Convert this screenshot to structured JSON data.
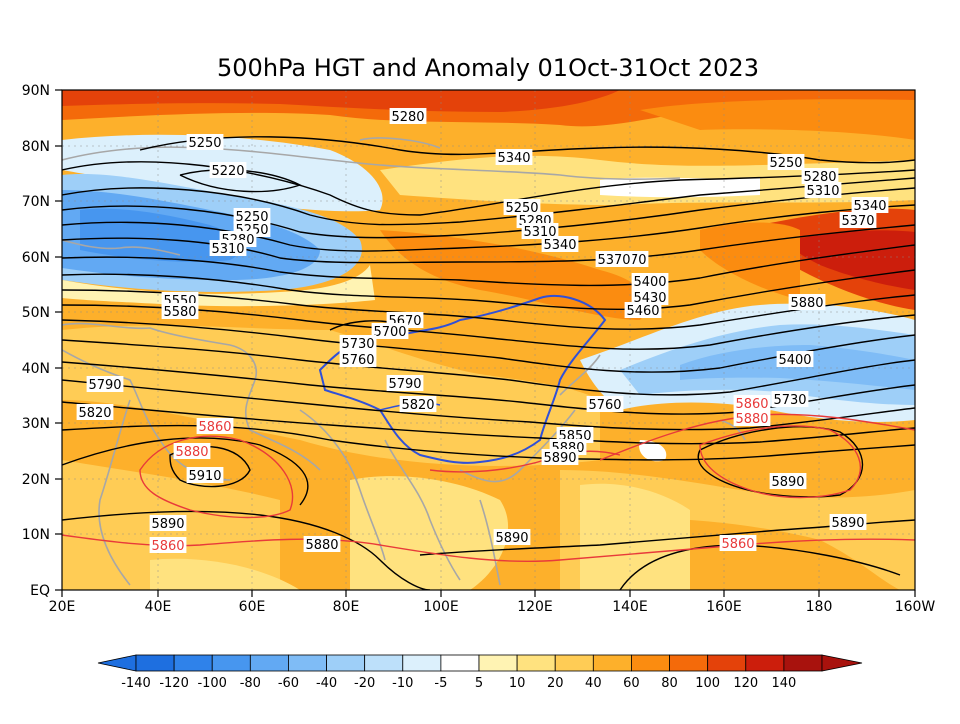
{
  "title": "500hPa HGT and Anomaly 01Oct-31Oct 2023",
  "lat_labels": [
    "90N",
    "80N",
    "70N",
    "60N",
    "50N",
    "40N",
    "30N",
    "20N",
    "10N",
    "EQ"
  ],
  "lon_labels": [
    "20E",
    "40E",
    "60E",
    "80E",
    "100E",
    "120E",
    "140E",
    "160E",
    "180",
    "160W"
  ],
  "colorbar": {
    "labels": [
      "-140",
      "-120",
      "-100",
      "-80",
      "-60",
      "-40",
      "-20",
      "-10",
      "-5",
      "5",
      "10",
      "20",
      "40",
      "60",
      "80",
      "100",
      "120",
      "140"
    ],
    "colors": [
      "#1e6fe0",
      "#2f82ea",
      "#4796ef",
      "#62a9f3",
      "#7fbcf6",
      "#9ecff8",
      "#bde0fa",
      "#dcf0fc",
      "#ffffff",
      "#fff3b3",
      "#ffe27f",
      "#ffcc55",
      "#fdb02b",
      "#fb8c10",
      "#f46a0a",
      "#e4420a",
      "#cc1e0c",
      "#a8120d"
    ]
  },
  "contour_labels_black": [
    "5280",
    "5250",
    "5220",
    "5250",
    "5250",
    "5280",
    "5310",
    "5340",
    "5250",
    "5280",
    "5310",
    "5340",
    "5370",
    "5250",
    "5280",
    "5310",
    "5340",
    "5370",
    "5550",
    "5580",
    "5370",
    "5400",
    "5430",
    "5460",
    "5670",
    "5700",
    "5730",
    "5760",
    "5790",
    "5820",
    "5790",
    "5820",
    "5760",
    "5850",
    "5880",
    "5890",
    "5890",
    "5910",
    "5890",
    "5880",
    "5890",
    "5890",
    "5880",
    "5400",
    "5730",
    "5890"
  ],
  "contour_labels_red": [
    "5860",
    "5880",
    "5860",
    "5860",
    "5880",
    "5860"
  ]
}
